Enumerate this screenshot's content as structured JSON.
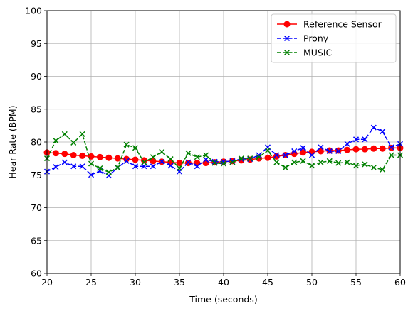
{
  "chart_data": {
    "type": "line",
    "xlabel": "Time (seconds)",
    "ylabel": "Hear Rate (BPM)",
    "xlim": [
      20,
      60
    ],
    "ylim": [
      60,
      100
    ],
    "xticks": [
      20,
      25,
      30,
      35,
      40,
      45,
      50,
      55,
      60
    ],
    "yticks": [
      60,
      65,
      70,
      75,
      80,
      85,
      90,
      95,
      100
    ],
    "grid": true,
    "legend_position": "top-right",
    "x": [
      20,
      21,
      22,
      23,
      24,
      25,
      26,
      27,
      28,
      29,
      30,
      31,
      32,
      33,
      34,
      35,
      36,
      37,
      38,
      39,
      40,
      41,
      42,
      43,
      44,
      45,
      46,
      47,
      48,
      49,
      50,
      51,
      52,
      53,
      54,
      55,
      56,
      57,
      58,
      59,
      60
    ],
    "series": [
      {
        "name": "Reference Sensor",
        "color": "#ff0000",
        "marker": "circle",
        "linestyle": "solid",
        "values": [
          78.4,
          78.3,
          78.2,
          78.0,
          77.9,
          77.8,
          77.7,
          77.6,
          77.5,
          77.4,
          77.3,
          77.2,
          77.1,
          77.0,
          76.9,
          76.8,
          76.8,
          76.8,
          76.8,
          76.9,
          77.0,
          77.1,
          77.2,
          77.3,
          77.5,
          77.6,
          77.8,
          78.0,
          78.2,
          78.4,
          78.5,
          78.6,
          78.7,
          78.7,
          78.8,
          78.9,
          78.9,
          79.0,
          79.0,
          79.1,
          79.1
        ]
      },
      {
        "name": "Prony",
        "color": "#0000ff",
        "marker": "x",
        "linestyle": "dashed",
        "values": [
          75.5,
          76.2,
          76.9,
          76.3,
          76.3,
          75.0,
          75.6,
          74.9,
          76.1,
          77.1,
          76.3,
          76.3,
          76.3,
          77.0,
          76.4,
          75.5,
          76.9,
          76.3,
          77.3,
          77.0,
          77.0,
          77.1,
          77.4,
          77.4,
          78.0,
          79.2,
          78.0,
          78.0,
          78.6,
          79.1,
          78.0,
          79.2,
          78.6,
          78.6,
          79.7,
          80.4,
          80.4,
          82.2,
          81.6,
          79.2,
          79.7
        ]
      },
      {
        "name": "MUSIC",
        "color": "#008000",
        "marker": "x",
        "linestyle": "dashed",
        "values": [
          77.5,
          80.2,
          81.2,
          79.9,
          81.2,
          76.7,
          76.0,
          75.4,
          76.1,
          79.6,
          79.1,
          76.9,
          77.7,
          78.5,
          77.4,
          76.0,
          78.3,
          77.7,
          78.0,
          76.8,
          76.7,
          76.9,
          77.5,
          77.5,
          77.7,
          78.7,
          76.9,
          76.1,
          76.9,
          77.1,
          76.4,
          76.9,
          77.1,
          76.8,
          76.9,
          76.4,
          76.6,
          76.1,
          75.8,
          78.0,
          78.0
        ]
      }
    ]
  }
}
